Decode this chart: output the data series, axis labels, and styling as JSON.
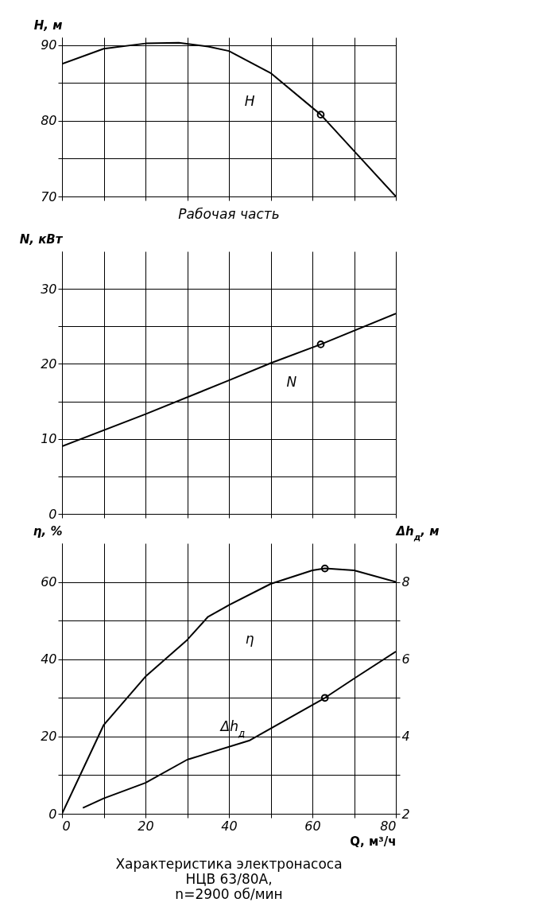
{
  "chart_data": [
    {
      "type": "line",
      "ylabel": "Н, м",
      "xlim": [
        0,
        80
      ],
      "xticks": [
        0,
        {
          "value": 10,
          "label": null
        },
        20,
        {
          "value": 30,
          "label": null
        },
        40,
        {
          "value": 50,
          "label": null
        },
        60,
        {
          "value": 70,
          "label": null
        },
        80
      ],
      "ylim": [
        70,
        91
      ],
      "yticks": [
        70,
        {
          "value": 75,
          "label": null
        },
        80,
        {
          "value": 85,
          "label": null
        },
        90
      ],
      "grid": true,
      "tick_labels": "y",
      "series": [
        {
          "name": "H",
          "color": "#000000",
          "x": [
            0,
            10,
            20,
            28,
            35,
            40,
            50,
            62,
            70,
            80
          ],
          "values": [
            87.5,
            89.5,
            90.2,
            90.3,
            89.8,
            89.2,
            86.3,
            80.8,
            76,
            70
          ]
        },
        {
          "type": "scatter",
          "color": "#000000",
          "marker": "circle",
          "x": [
            62
          ],
          "values": [
            80.8
          ]
        }
      ]
    },
    {
      "type": "line",
      "ylabel": "N, кВт",
      "annotations": [
        "Рабочая часть"
      ],
      "xlim": [
        0,
        80
      ],
      "xticks": [
        0,
        {
          "value": 10,
          "label": null
        },
        20,
        {
          "value": 30,
          "label": null
        },
        40,
        {
          "value": 50,
          "label": null
        },
        60,
        {
          "value": 70,
          "label": null
        },
        80
      ],
      "ylim": [
        0,
        35
      ],
      "yticks": [
        0,
        {
          "value": 5,
          "label": null
        },
        10,
        {
          "value": 15,
          "label": null
        },
        20,
        {
          "value": 25,
          "label": null
        },
        30
      ],
      "grid": true,
      "tick_labels": "y",
      "series": [
        {
          "name": "N",
          "color": "#000000",
          "x": [
            0,
            20,
            40,
            50,
            62,
            80
          ],
          "values": [
            9,
            13.3,
            17.8,
            20.1,
            22.6,
            26.7
          ]
        },
        {
          "type": "scatter",
          "color": "#000000",
          "marker": "circle",
          "x": [
            62
          ],
          "values": [
            22.6
          ]
        }
      ]
    },
    {
      "type": "line",
      "ylabel": "η, %",
      "y2label": "Δh$_{д}$, м",
      "xlabel": "Q, м³/ч",
      "annotations": [
        "Характеристика электронасоса",
        "НЦВ 63/80А,",
        "n=2900 об/мин"
      ],
      "xlim": [
        0,
        80
      ],
      "xticks": [
        0,
        {
          "value": 10,
          "label": null
        },
        20,
        {
          "value": 30,
          "label": null
        },
        40,
        {
          "value": 50,
          "label": null
        },
        60,
        {
          "value": 70,
          "label": null
        },
        80
      ],
      "ylim": [
        0,
        70
      ],
      "yticks": [
        0,
        {
          "value": 10,
          "label": null
        },
        20,
        {
          "value": 30,
          "label": null
        },
        40,
        {
          "value": 50,
          "label": null
        },
        60
      ],
      "y2lim": [
        2,
        9
      ],
      "y2ticks": [
        2,
        {
          "value": 3,
          "label": null
        },
        4,
        {
          "value": 5,
          "label": null
        },
        6,
        {
          "value": 7,
          "label": null
        },
        8
      ],
      "grid": true,
      "series": [
        {
          "name": "η",
          "color": "#000000",
          "x": [
            0,
            10,
            20,
            30,
            35,
            40,
            50,
            60,
            63,
            70,
            80
          ],
          "values": [
            0,
            23,
            35.5,
            45,
            51,
            54,
            59.5,
            63,
            63.5,
            63,
            60
          ]
        },
        {
          "type": "scatter",
          "color": "#000000",
          "marker": "circle",
          "x": [
            63
          ],
          "values": [
            63.5
          ]
        },
        {
          "name": "Δh$_{д}$",
          "color": "#000000",
          "axis": "y2",
          "x": [
            5,
            10,
            20,
            30,
            45,
            63,
            70,
            80
          ],
          "values": [
            2.15,
            2.4,
            2.8,
            3.4,
            3.9,
            5,
            5.5,
            6.2
          ]
        },
        {
          "type": "scatter",
          "color": "#000000",
          "marker": "circle",
          "axis": "y2",
          "x": [
            63
          ],
          "values": [
            5
          ]
        }
      ]
    }
  ]
}
